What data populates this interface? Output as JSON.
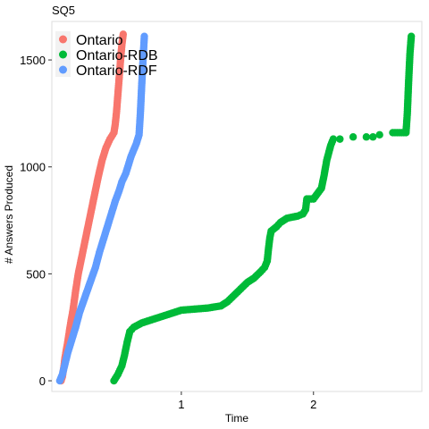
{
  "chart_data": {
    "type": "scatter",
    "title": "SQ5",
    "xlabel": "Time",
    "ylabel": "# Answers Produced",
    "xlim": [
      0.02,
      2.82
    ],
    "ylim": [
      -50,
      1680
    ],
    "x_ticks": [
      1,
      2
    ],
    "y_ticks": [
      0,
      500,
      1000,
      1500
    ],
    "grid": false,
    "legend_position": "top-left",
    "series": [
      {
        "name": "Ontario",
        "color": "#F8766D",
        "points": [
          [
            0.09,
            0
          ],
          [
            0.1,
            20
          ],
          [
            0.11,
            60
          ],
          [
            0.12,
            110
          ],
          [
            0.14,
            180
          ],
          [
            0.16,
            260
          ],
          [
            0.18,
            330
          ],
          [
            0.2,
            420
          ],
          [
            0.22,
            500
          ],
          [
            0.25,
            590
          ],
          [
            0.28,
            680
          ],
          [
            0.31,
            770
          ],
          [
            0.34,
            860
          ],
          [
            0.37,
            950
          ],
          [
            0.4,
            1030
          ],
          [
            0.43,
            1090
          ],
          [
            0.46,
            1130
          ],
          [
            0.49,
            1160
          ],
          [
            0.5,
            1200
          ],
          [
            0.51,
            1260
          ],
          [
            0.52,
            1340
          ],
          [
            0.53,
            1420
          ],
          [
            0.54,
            1500
          ],
          [
            0.55,
            1570
          ],
          [
            0.56,
            1620
          ]
        ]
      },
      {
        "name": "Ontario-RDB",
        "color": "#00BA38",
        "points": [
          [
            0.49,
            0
          ],
          [
            0.52,
            30
          ],
          [
            0.55,
            70
          ],
          [
            0.57,
            120
          ],
          [
            0.59,
            180
          ],
          [
            0.61,
            230
          ],
          [
            0.64,
            250
          ],
          [
            0.7,
            270
          ],
          [
            0.8,
            290
          ],
          [
            0.9,
            310
          ],
          [
            1.0,
            330
          ],
          [
            1.1,
            335
          ],
          [
            1.2,
            340
          ],
          [
            1.3,
            350
          ],
          [
            1.35,
            370
          ],
          [
            1.4,
            400
          ],
          [
            1.45,
            430
          ],
          [
            1.5,
            460
          ],
          [
            1.55,
            480
          ],
          [
            1.6,
            510
          ],
          [
            1.63,
            530
          ],
          [
            1.65,
            560
          ],
          [
            1.66,
            620
          ],
          [
            1.67,
            670
          ],
          [
            1.68,
            700
          ],
          [
            1.72,
            720
          ],
          [
            1.75,
            740
          ],
          [
            1.8,
            760
          ],
          [
            1.88,
            770
          ],
          [
            1.92,
            780
          ],
          [
            1.94,
            800
          ],
          [
            1.95,
            850
          ],
          [
            2.0,
            850
          ],
          [
            2.06,
            900
          ],
          [
            2.08,
            960
          ],
          [
            2.1,
            1030
          ],
          [
            2.13,
            1100
          ],
          [
            2.15,
            1130
          ],
          [
            2.2,
            1130
          ],
          [
            2.3,
            1140
          ],
          [
            2.4,
            1140
          ],
          [
            2.45,
            1140
          ],
          [
            2.5,
            1150
          ],
          [
            2.6,
            1160
          ],
          [
            2.7,
            1160
          ],
          [
            2.71,
            1250
          ],
          [
            2.72,
            1400
          ],
          [
            2.73,
            1530
          ],
          [
            2.74,
            1610
          ]
        ]
      },
      {
        "name": "Ontario-RDF",
        "color": "#619CFF",
        "points": [
          [
            0.08,
            0
          ],
          [
            0.1,
            30
          ],
          [
            0.12,
            80
          ],
          [
            0.14,
            130
          ],
          [
            0.17,
            190
          ],
          [
            0.2,
            250
          ],
          [
            0.23,
            320
          ],
          [
            0.27,
            390
          ],
          [
            0.31,
            460
          ],
          [
            0.35,
            530
          ],
          [
            0.38,
            600
          ],
          [
            0.41,
            660
          ],
          [
            0.44,
            720
          ],
          [
            0.47,
            780
          ],
          [
            0.5,
            840
          ],
          [
            0.53,
            890
          ],
          [
            0.55,
            930
          ],
          [
            0.58,
            970
          ],
          [
            0.6,
            1010
          ],
          [
            0.62,
            1050
          ],
          [
            0.64,
            1080
          ],
          [
            0.66,
            1110
          ],
          [
            0.68,
            1150
          ],
          [
            0.69,
            1250
          ],
          [
            0.7,
            1380
          ],
          [
            0.71,
            1500
          ],
          [
            0.72,
            1610
          ]
        ]
      }
    ]
  }
}
